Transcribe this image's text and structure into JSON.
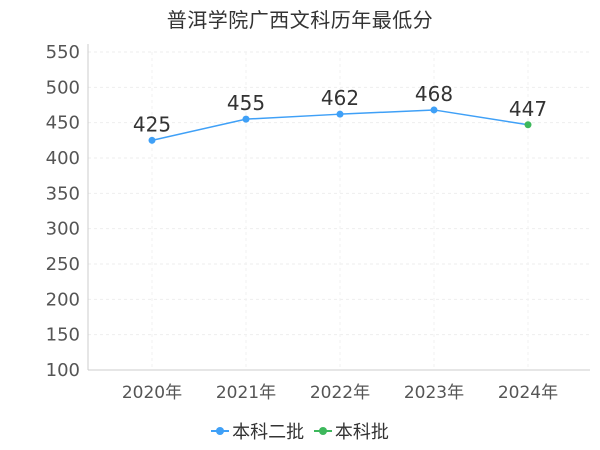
{
  "chart_data": {
    "type": "line",
    "title": "普洱学院广西文科历年最低分",
    "categories": [
      "2020年",
      "2021年",
      "2022年",
      "2023年",
      "2024年"
    ],
    "values": [
      425,
      455,
      462,
      468,
      447
    ],
    "point_series": [
      "本科二批",
      "本科二批",
      "本科二批",
      "本科二批",
      "本科批"
    ],
    "series": [
      {
        "name": "本科二批",
        "color": "#3fa0f7"
      },
      {
        "name": "本科批",
        "color": "#3db85c"
      }
    ],
    "yticks": [
      "100",
      "150",
      "200",
      "250",
      "300",
      "350",
      "400",
      "450",
      "500",
      "550"
    ],
    "ylim": [
      100,
      550
    ],
    "grid": true,
    "legend_position": "bottom"
  }
}
